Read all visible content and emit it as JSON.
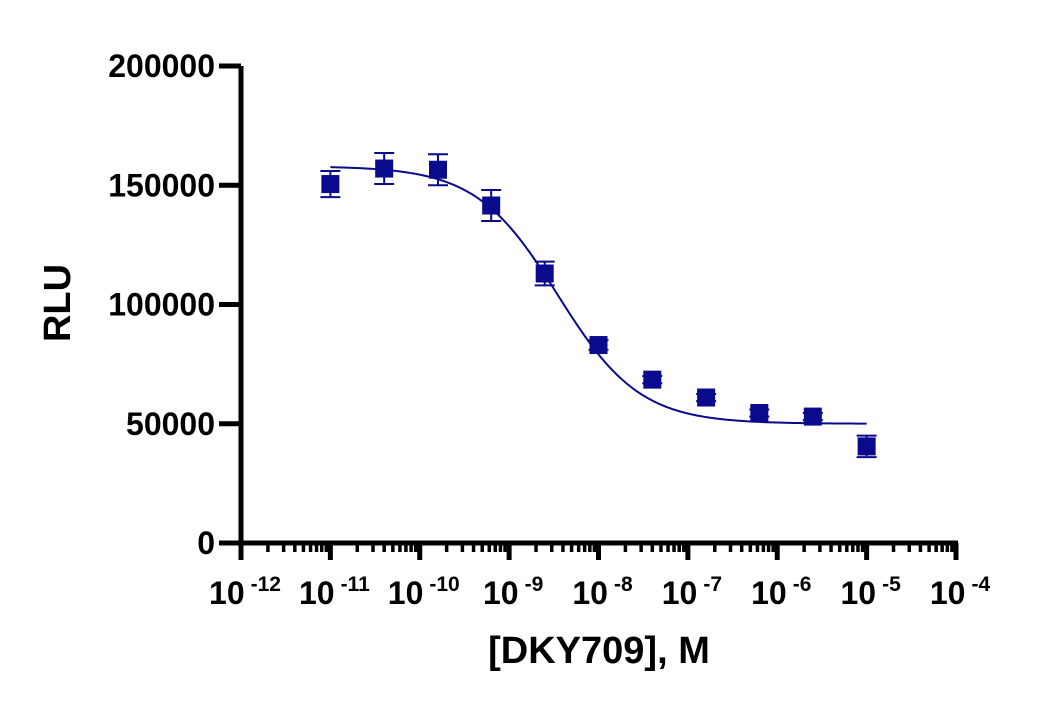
{
  "chart_data": {
    "type": "scatter",
    "xlabel": "[DKY709], M",
    "ylabel": "RLU",
    "x_scale": "log10",
    "xlim": [
      1e-12,
      0.0001
    ],
    "ylim": [
      0,
      200000
    ],
    "y_ticks": [
      {
        "value": 0,
        "label": "0"
      },
      {
        "value": 50000,
        "label": "50000"
      },
      {
        "value": 100000,
        "label": "100000"
      },
      {
        "value": 150000,
        "label": "150000"
      },
      {
        "value": 200000,
        "label": "200000"
      }
    ],
    "x_ticks": [
      {
        "value": 1e-12,
        "base": "10",
        "exp": "-12"
      },
      {
        "value": 1e-11,
        "base": "10",
        "exp": "-11"
      },
      {
        "value": 1e-10,
        "base": "10",
        "exp": "-10"
      },
      {
        "value": 1e-09,
        "base": "10",
        "exp": "-9"
      },
      {
        "value": 1e-08,
        "base": "10",
        "exp": "-8"
      },
      {
        "value": 1e-07,
        "base": "10",
        "exp": "-7"
      },
      {
        "value": 1e-06,
        "base": "10",
        "exp": "-6"
      },
      {
        "value": 1e-05,
        "base": "10",
        "exp": "-5"
      },
      {
        "value": 0.0001,
        "base": "10",
        "exp": "-4"
      }
    ],
    "grid": false,
    "legend": "none",
    "series": [
      {
        "marker": "square",
        "color": "#0a0a8c",
        "points": [
          {
            "x": 1e-11,
            "y": 150500,
            "err": 5500
          },
          {
            "x": 4e-11,
            "y": 157000,
            "err": 6500
          },
          {
            "x": 1.6e-10,
            "y": 156500,
            "err": 6500
          },
          {
            "x": 6.3e-10,
            "y": 141500,
            "err": 6500
          },
          {
            "x": 2.5e-09,
            "y": 113000,
            "err": 5000
          },
          {
            "x": 1e-08,
            "y": 83000,
            "err": 2000
          },
          {
            "x": 4e-08,
            "y": 68500,
            "err": 1500
          },
          {
            "x": 1.6e-07,
            "y": 61000,
            "err": 1500
          },
          {
            "x": 6.3e-07,
            "y": 54500,
            "err": 1500
          },
          {
            "x": 2.5e-06,
            "y": 53000,
            "err": 1500
          },
          {
            "x": 1e-05,
            "y": 40500,
            "err": 4500
          }
        ]
      }
    ],
    "fit": {
      "model": "four-parameter-logistic",
      "top": 158000,
      "bottom": 50000,
      "ec50": 3.5e-09,
      "hill": 0.95,
      "x_range": [
        1e-11,
        1e-05
      ],
      "color": "#0a0a8c"
    }
  }
}
